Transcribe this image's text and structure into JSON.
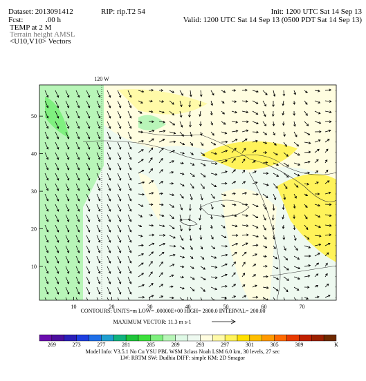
{
  "header": {
    "dataset": "Dataset: 2013091412",
    "rip": "RIP: rip.T2 54",
    "init": "Init: 1200 UTC Sat 14 Sep 13",
    "fcst": "Fcst:",
    "fcst_value": ".00 h",
    "valid": "Valid: 1200 UTC Sat 14 Sep 13 (0500 PDT Sat 14 Sep 13)",
    "lines": [
      "TEMP at 2 M",
      "Terrain height AMSL",
      "<U10,V10> Vectors"
    ]
  },
  "map": {
    "meridian_label": "120 W",
    "xlim": [
      1,
      79
    ],
    "ylim": [
      1,
      58.3
    ],
    "xticks": [
      10,
      20,
      30,
      40,
      50,
      60,
      70
    ],
    "yticks": [
      10,
      20,
      30,
      40,
      50
    ]
  },
  "contour_info": "CONTOURS:  UNITS=m  LOW= .00000E+00  HIGH= 2800.0  INTERVAL= 200.00",
  "max_vector": "MAXIMUM VECTOR: 11.3 m s-1",
  "colorbar": {
    "labels": [
      "269",
      "273",
      "277",
      "281",
      "285",
      "289",
      "293",
      "297",
      "301",
      "305",
      "309"
    ],
    "unit": "K",
    "colors": [
      "#6a0dad",
      "#4b0f9e",
      "#2a1fb8",
      "#1e3ee0",
      "#1f6fe8",
      "#1f9fd0",
      "#11b37f",
      "#1fc53a",
      "#3ce03c",
      "#7ff07f",
      "#b8f5b8",
      "#dff9e6",
      "#eef9f0",
      "#fffde0",
      "#fffaa8",
      "#fff35a",
      "#ffe000",
      "#ffbf00",
      "#ff9900",
      "#ff6a00",
      "#e83a00",
      "#c02000",
      "#9a2000",
      "#6e2a00"
    ]
  },
  "footer": [
    "Model Info: V3.5.1    No Cu    YSU PBL    WSM 3class    Noah LSM    6.0 km,    30 levels,    27 sec",
    "LW: RRTM   SW: Dudhia   DIFF: simple   KM: 2D Smagor"
  ]
}
